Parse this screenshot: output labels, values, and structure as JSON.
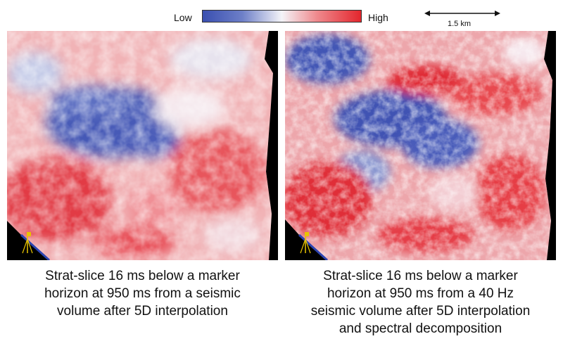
{
  "legend": {
    "low_label": "Low",
    "high_label": "High",
    "colors": [
      "#3a4fb0",
      "#f4f4f8",
      "#e3262d"
    ]
  },
  "scale": {
    "label": "1.5 km"
  },
  "panels": [
    {
      "caption_lines": [
        "Strat-slice 16 ms below a marker",
        "horizon at 950 ms from a seismic",
        "volume after 5D interpolation"
      ]
    },
    {
      "caption_lines": [
        "Strat-slice 16 ms below a marker",
        "horizon at 950 ms from a 40 Hz",
        "seismic volume after 5D interpolation",
        "and spectral decomposition"
      ]
    }
  ],
  "north_arrow": {
    "icon": "north-arrow-icon"
  }
}
